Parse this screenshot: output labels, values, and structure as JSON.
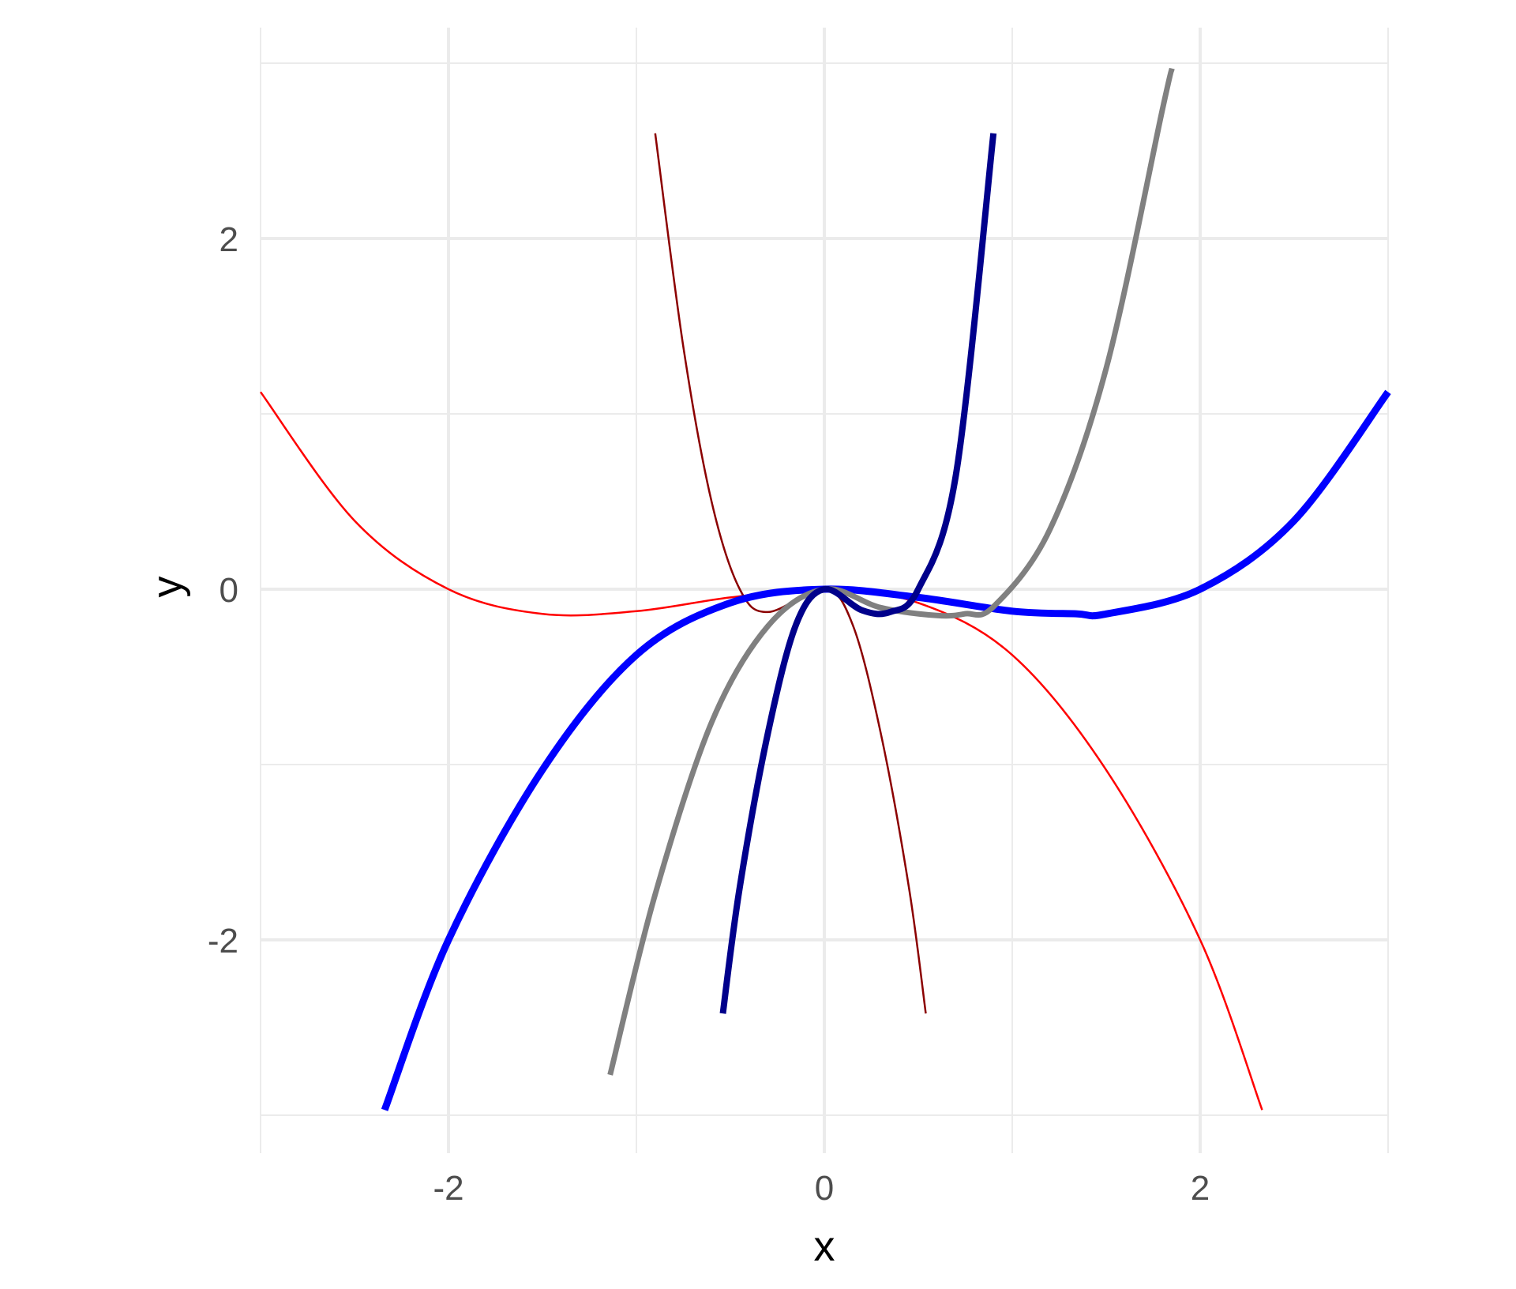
{
  "chart_data": {
    "type": "line",
    "title": "",
    "xlabel": "x",
    "ylabel": "y",
    "xlim": [
      -3.0,
      3.0
    ],
    "ylim": [
      -3.0,
      3.0
    ],
    "x_ticks": [
      -2,
      0,
      2
    ],
    "x_tick_labels": [
      "-2",
      "0",
      "2"
    ],
    "y_ticks": [
      -2,
      0,
      2
    ],
    "y_tick_labels": [
      "-2",
      "0",
      "2"
    ],
    "grid": true,
    "legend": "none",
    "series": [
      {
        "color": "#ff0000",
        "x": [
          -3.0,
          -2.5,
          -2.0,
          -1.5,
          -1.0,
          -0.5,
          0.0,
          0.5,
          1.0,
          1.5,
          2.0,
          2.33
        ],
        "y": [
          1.125,
          0.391,
          0.0,
          -0.141,
          -0.125,
          -0.047,
          0.0,
          -0.078,
          -0.375,
          -1.031,
          -2.0,
          -2.97
        ]
      },
      {
        "color": "#8b0000",
        "x": [
          -0.9,
          -0.75,
          -0.6,
          -0.45,
          -0.3,
          0.0,
          0.15,
          0.3,
          0.45,
          0.54
        ],
        "y": [
          2.6,
          1.38,
          0.5,
          0.0,
          -0.13,
          0.0,
          -0.2,
          -0.82,
          -1.7,
          -2.42
        ]
      },
      {
        "color": "#0000ff",
        "x": [
          -2.34,
          -2.0,
          -1.5,
          -1.0,
          -0.5,
          0.0,
          0.5,
          1.0,
          1.34,
          1.5,
          2.0,
          2.5,
          3.0
        ],
        "y": [
          -2.97,
          -2.0,
          -1.03,
          -0.375,
          -0.078,
          0.0,
          -0.047,
          -0.125,
          -0.14,
          -0.141,
          0.0,
          0.391,
          1.125
        ]
      },
      {
        "color": "#808080",
        "x": [
          -1.14,
          -0.9,
          -0.6,
          -0.3,
          0.0,
          0.3,
          0.6,
          0.75,
          0.9,
          1.2,
          1.5,
          1.8,
          1.85
        ],
        "y": [
          -2.77,
          -1.74,
          -0.76,
          -0.21,
          0.0,
          -0.105,
          -0.15,
          -0.14,
          -0.1,
          0.34,
          1.26,
          2.74,
          2.97
        ]
      },
      {
        "color": "#00008b",
        "x": [
          -0.54,
          -0.45,
          -0.3,
          -0.15,
          0.0,
          0.2,
          0.35,
          0.5,
          0.7,
          0.9
        ],
        "y": [
          -2.42,
          -1.7,
          -0.82,
          -0.2,
          0.0,
          -0.12,
          -0.13,
          0.0,
          0.65,
          2.6
        ]
      }
    ]
  }
}
